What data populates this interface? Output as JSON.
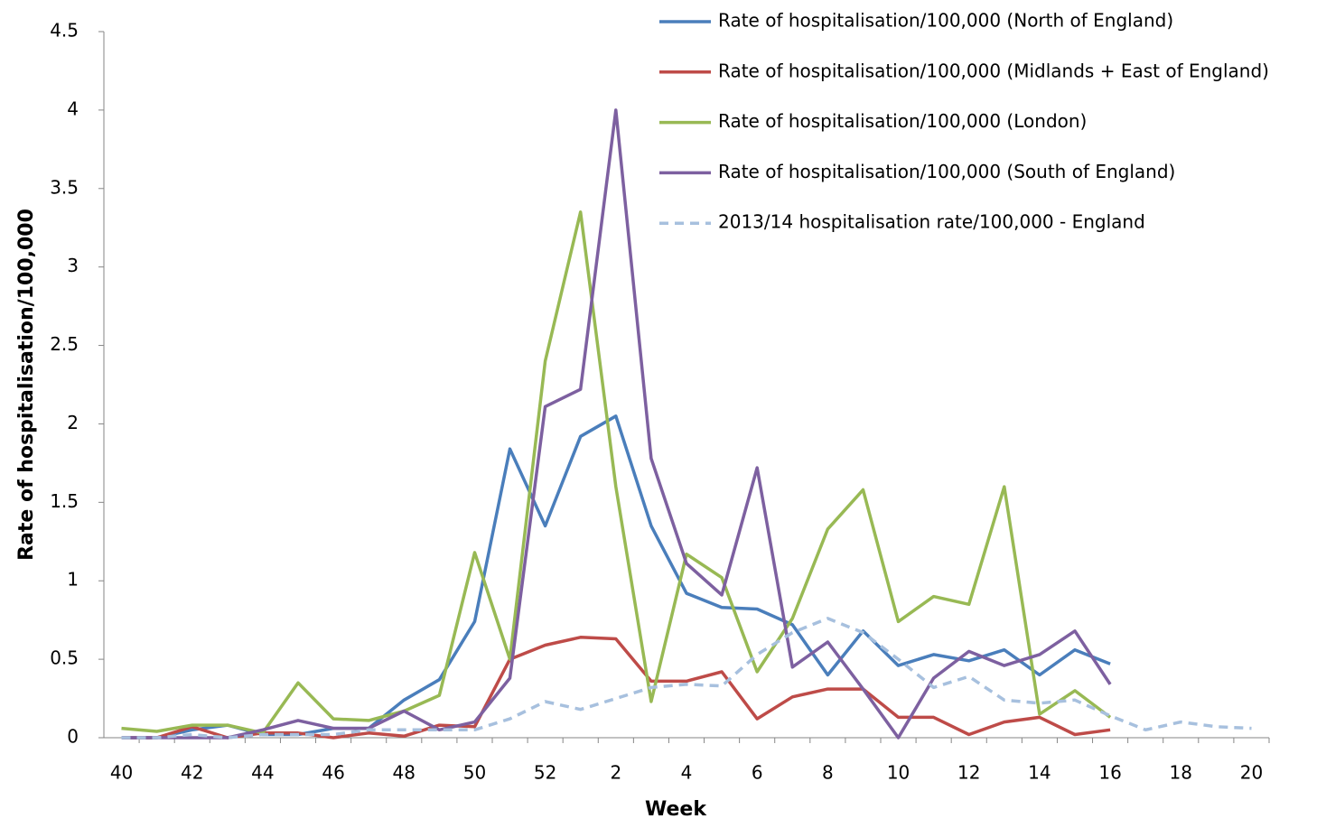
{
  "chart_data": {
    "type": "line",
    "x_label": "Week",
    "y_label": "Rate of hospitalisation/100,000",
    "categories": [
      "40",
      null,
      "42",
      null,
      "44",
      null,
      "46",
      null,
      "48",
      null,
      "50",
      null,
      "52",
      null,
      "2",
      null,
      "4",
      null,
      "6",
      null,
      "8",
      null,
      "10",
      null,
      "12",
      null,
      "14",
      null,
      "16",
      null,
      "18",
      null,
      "20"
    ],
    "ylim": [
      0,
      4.5
    ],
    "yticks": [
      0,
      0.5,
      1,
      1.5,
      2,
      2.5,
      3,
      3.5,
      4,
      4.5
    ],
    "legend": "top-right",
    "series": [
      {
        "name": "Rate of hospitalisation/100,000 (North of England)",
        "color": "#4a7ebb",
        "style": "solid",
        "values": [
          0,
          0,
          0.05,
          0.08,
          0.02,
          0.02,
          0.06,
          0.06,
          0.24,
          0.37,
          0.74,
          1.84,
          1.35,
          1.92,
          2.05,
          1.35,
          0.92,
          0.83,
          0.82,
          0.72,
          0.4,
          0.68,
          0.46,
          0.53,
          0.49,
          0.56,
          0.4,
          0.56,
          0.47,
          null,
          null,
          null,
          null
        ]
      },
      {
        "name": "Rate of hospitalisation/100,000 (Midlands + East of England)",
        "color": "#be4b48",
        "style": "solid",
        "values": [
          0,
          0,
          0.07,
          0,
          0.03,
          0.03,
          0,
          0.03,
          0.01,
          0.08,
          0.07,
          0.5,
          0.59,
          0.64,
          0.63,
          0.36,
          0.36,
          0.42,
          0.12,
          0.26,
          0.31,
          0.31,
          0.13,
          0.13,
          0.02,
          0.1,
          0.13,
          0.02,
          0.05,
          null,
          null,
          null,
          null
        ]
      },
      {
        "name": "Rate of hospitalisation/100,000 (London)",
        "color": "#98b954",
        "style": "solid",
        "values": [
          0.06,
          0.04,
          0.08,
          0.08,
          0.03,
          0.35,
          0.12,
          0.11,
          0.17,
          0.27,
          1.18,
          0.5,
          2.4,
          3.35,
          1.6,
          0.23,
          1.17,
          1.02,
          0.42,
          0.76,
          1.33,
          1.58,
          0.74,
          0.9,
          0.85,
          1.6,
          0.15,
          0.3,
          0.13,
          null,
          null,
          null,
          null
        ]
      },
      {
        "name": "Rate of hospitalisation/100,000 (South of England)",
        "color": "#7d60a0",
        "style": "solid",
        "values": [
          0,
          0,
          0,
          0,
          0.05,
          0.11,
          0.06,
          0.06,
          0.17,
          0.05,
          0.1,
          0.38,
          2.11,
          2.22,
          4.0,
          1.78,
          1.11,
          0.91,
          1.72,
          0.45,
          0.61,
          0.31,
          0,
          0.38,
          0.55,
          0.46,
          0.53,
          0.68,
          0.34,
          null,
          null,
          null,
          null
        ]
      },
      {
        "name": "2013/14 hospitalisation rate/100,000 - England",
        "color": "#a7c0de",
        "style": "dashed",
        "values": [
          0,
          0,
          0.02,
          0,
          0.02,
          0.02,
          0.02,
          0.05,
          0.05,
          0.05,
          0.05,
          0.12,
          0.23,
          0.18,
          0.25,
          0.32,
          0.34,
          0.33,
          0.53,
          0.67,
          0.76,
          0.67,
          0.5,
          0.32,
          0.39,
          0.24,
          0.22,
          0.24,
          0.14,
          0.05,
          0.1,
          0.07,
          0.06
        ]
      }
    ]
  }
}
